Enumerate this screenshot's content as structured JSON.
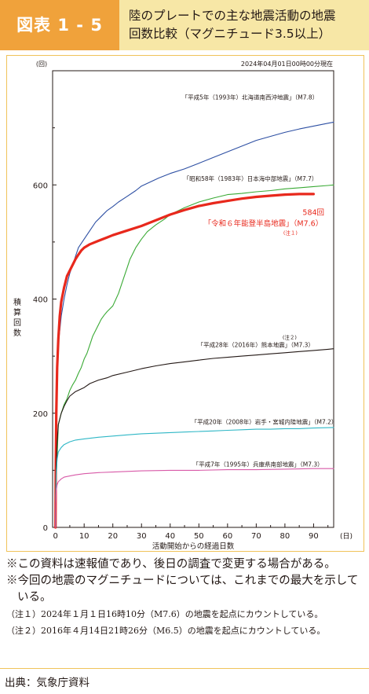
{
  "header": {
    "badge": "図表 1 - 5",
    "title_line1": "陸のプレートでの主な地震活動の地震",
    "title_line2": "回数比較（マグニチュード3.5以上）"
  },
  "colors": {
    "badge_bg": "#f0a23b",
    "header_bg": "#f7e7a6",
    "hokkaido": "#2d4fa3",
    "chuetsu": "#3aaa35",
    "noto": "#e8281c",
    "kumamoto": "#231815",
    "iwate": "#2fb7c6",
    "hyogo": "#d85aa8"
  },
  "chart_data": {
    "type": "line",
    "date_note": "2024年04月01日00時00分現在",
    "xlabel": "活動開始からの経過日数",
    "x_unit": "(日)",
    "ylabel": "積算回数",
    "y_unit": "(回)",
    "xlim": [
      -1,
      97
    ],
    "ylim": [
      0,
      800
    ],
    "x_ticks": [
      0,
      10,
      20,
      30,
      40,
      50,
      60,
      70,
      80,
      90
    ],
    "y_ticks": [
      0,
      200,
      400,
      600
    ],
    "series": [
      {
        "name": "「平成5年（1993年）北海道南西沖地震」（M7.8）",
        "color_key": "hokkaido",
        "points": [
          [
            0,
            0
          ],
          [
            0.1,
            80
          ],
          [
            0.3,
            180
          ],
          [
            0.7,
            280
          ],
          [
            1.2,
            330
          ],
          [
            2,
            370
          ],
          [
            3,
            400
          ],
          [
            4,
            425
          ],
          [
            5,
            445
          ],
          [
            6,
            460
          ],
          [
            7,
            475
          ],
          [
            8,
            490
          ],
          [
            10,
            505
          ],
          [
            12,
            520
          ],
          [
            14,
            535
          ],
          [
            16,
            545
          ],
          [
            18,
            555
          ],
          [
            20,
            562
          ],
          [
            22,
            570
          ],
          [
            25,
            580
          ],
          [
            28,
            590
          ],
          [
            30,
            598
          ],
          [
            33,
            605
          ],
          [
            36,
            612
          ],
          [
            40,
            620
          ],
          [
            45,
            628
          ],
          [
            50,
            638
          ],
          [
            55,
            648
          ],
          [
            60,
            658
          ],
          [
            65,
            668
          ],
          [
            70,
            678
          ],
          [
            75,
            685
          ],
          [
            80,
            692
          ],
          [
            85,
            698
          ],
          [
            90,
            703
          ],
          [
            95,
            708
          ],
          [
            97,
            710
          ]
        ]
      },
      {
        "name": "「昭和58年（1983年）日本海中部地震」（M7.7）",
        "color_key": "chuetsu",
        "points": [
          [
            0,
            0
          ],
          [
            0.1,
            40
          ],
          [
            0.3,
            90
          ],
          [
            0.7,
            140
          ],
          [
            1,
            180
          ],
          [
            2,
            200
          ],
          [
            3,
            215
          ],
          [
            4,
            225
          ],
          [
            5,
            240
          ],
          [
            6,
            250
          ],
          [
            7,
            258
          ],
          [
            8,
            270
          ],
          [
            9,
            280
          ],
          [
            10,
            295
          ],
          [
            11,
            305
          ],
          [
            12,
            320
          ],
          [
            13,
            335
          ],
          [
            14,
            345
          ],
          [
            15,
            355
          ],
          [
            16,
            365
          ],
          [
            17,
            372
          ],
          [
            18,
            378
          ],
          [
            20,
            388
          ],
          [
            22,
            410
          ],
          [
            24,
            440
          ],
          [
            25,
            455
          ],
          [
            26,
            470
          ],
          [
            28,
            490
          ],
          [
            30,
            505
          ],
          [
            32,
            518
          ],
          [
            35,
            530
          ],
          [
            38,
            540
          ],
          [
            40,
            548
          ],
          [
            45,
            560
          ],
          [
            50,
            570
          ],
          [
            55,
            577
          ],
          [
            60,
            583
          ],
          [
            65,
            585
          ],
          [
            70,
            588
          ],
          [
            75,
            590
          ],
          [
            80,
            593
          ],
          [
            85,
            595
          ],
          [
            90,
            597
          ],
          [
            95,
            599
          ],
          [
            97,
            600
          ]
        ]
      },
      {
        "name": "「令和６年能登半島地震」（M7.6）",
        "label_value": "584回",
        "note": "(注１)",
        "color_key": "noto",
        "points": [
          [
            0,
            0
          ],
          [
            0.1,
            100
          ],
          [
            0.3,
            200
          ],
          [
            0.6,
            280
          ],
          [
            1,
            330
          ],
          [
            1.5,
            370
          ],
          [
            2,
            395
          ],
          [
            3,
            420
          ],
          [
            4,
            440
          ],
          [
            5,
            450
          ],
          [
            6,
            460
          ],
          [
            7,
            470
          ],
          [
            8,
            478
          ],
          [
            9,
            485
          ],
          [
            10,
            490
          ],
          [
            12,
            496
          ],
          [
            15,
            502
          ],
          [
            18,
            508
          ],
          [
            20,
            512
          ],
          [
            25,
            520
          ],
          [
            30,
            528
          ],
          [
            35,
            538
          ],
          [
            40,
            548
          ],
          [
            45,
            556
          ],
          [
            50,
            563
          ],
          [
            55,
            568
          ],
          [
            60,
            572
          ],
          [
            65,
            576
          ],
          [
            70,
            579
          ],
          [
            75,
            581
          ],
          [
            80,
            583
          ],
          [
            85,
            584
          ],
          [
            90,
            584
          ]
        ]
      },
      {
        "name": "「平成28年（2016年）熊本地震」（M7.3）",
        "note": "(注２)",
        "color_key": "kumamoto",
        "points": [
          [
            0,
            0
          ],
          [
            0.1,
            60
          ],
          [
            0.3,
            110
          ],
          [
            0.6,
            150
          ],
          [
            1,
            180
          ],
          [
            2,
            200
          ],
          [
            3,
            212
          ],
          [
            4,
            222
          ],
          [
            5,
            230
          ],
          [
            7,
            238
          ],
          [
            10,
            245
          ],
          [
            12,
            252
          ],
          [
            15,
            258
          ],
          [
            18,
            262
          ],
          [
            20,
            266
          ],
          [
            25,
            272
          ],
          [
            30,
            278
          ],
          [
            35,
            283
          ],
          [
            40,
            287
          ],
          [
            45,
            290
          ],
          [
            50,
            293
          ],
          [
            55,
            296
          ],
          [
            60,
            298
          ],
          [
            65,
            300
          ],
          [
            70,
            302
          ],
          [
            75,
            304
          ],
          [
            80,
            306
          ],
          [
            85,
            308
          ],
          [
            90,
            310
          ],
          [
            95,
            312
          ],
          [
            97,
            313
          ]
        ]
      },
      {
        "name": "「平成20年（2008年）岩手・宮城内陸地震」（M7.2）",
        "color_key": "iwate",
        "points": [
          [
            0,
            0
          ],
          [
            0.1,
            50
          ],
          [
            0.3,
            95
          ],
          [
            0.6,
            120
          ],
          [
            1,
            132
          ],
          [
            2,
            140
          ],
          [
            3,
            145
          ],
          [
            5,
            150
          ],
          [
            7,
            153
          ],
          [
            10,
            155
          ],
          [
            15,
            158
          ],
          [
            20,
            160
          ],
          [
            25,
            162
          ],
          [
            30,
            164
          ],
          [
            35,
            165
          ],
          [
            40,
            166
          ],
          [
            45,
            167
          ],
          [
            50,
            168
          ],
          [
            55,
            169
          ],
          [
            60,
            170
          ],
          [
            65,
            171
          ],
          [
            70,
            172
          ],
          [
            75,
            172
          ],
          [
            80,
            173
          ],
          [
            85,
            173
          ],
          [
            90,
            174
          ],
          [
            97,
            175
          ]
        ]
      },
      {
        "name": "「平成7年（1995年）兵庫県南部地震」（M7.3）",
        "color_key": "hyogo",
        "points": [
          [
            0,
            0
          ],
          [
            0.1,
            40
          ],
          [
            0.3,
            65
          ],
          [
            0.6,
            75
          ],
          [
            1,
            80
          ],
          [
            2,
            85
          ],
          [
            3,
            88
          ],
          [
            5,
            90
          ],
          [
            7,
            92
          ],
          [
            10,
            94
          ],
          [
            15,
            96
          ],
          [
            20,
            97
          ],
          [
            25,
            98
          ],
          [
            30,
            99
          ],
          [
            40,
            100
          ],
          [
            50,
            100
          ],
          [
            60,
            101
          ],
          [
            70,
            101
          ],
          [
            80,
            102
          ],
          [
            90,
            103
          ],
          [
            97,
            103
          ]
        ]
      }
    ]
  },
  "notes": [
    "※この資料は速報値であり、後日の調査で変更する場合がある。",
    "※今回の地震のマグニチュードについては、これまでの最大を示している。",
    "（注１）2024年１月１日16時10分（M7.6）の地震を起点にカウントしている。",
    "（注２）2016年４月14日21時26分（M6.5）の地震を起点にカウントしている。"
  ],
  "source": "出典：気象庁資料"
}
